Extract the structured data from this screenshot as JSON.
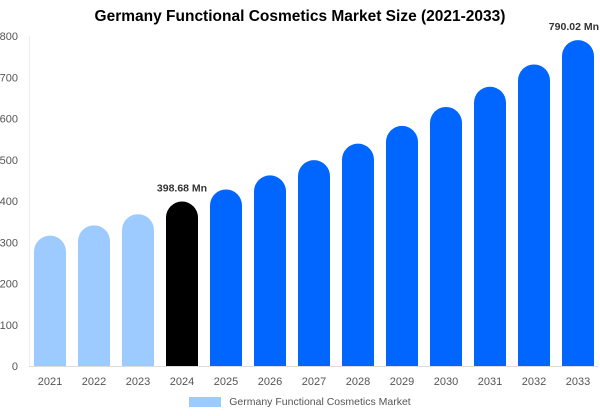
{
  "chart_data": {
    "type": "bar",
    "title": "Germany Functional Cosmetics Market Size (2021-2033)",
    "categories": [
      "2021",
      "2022",
      "2023",
      "2024",
      "2025",
      "2026",
      "2027",
      "2028",
      "2029",
      "2030",
      "2031",
      "2032",
      "2033"
    ],
    "series": [
      {
        "name": "Germany Functional Cosmetics Market",
        "values": [
          316,
          341,
          368,
          398.68,
          428,
          462,
          499,
          539,
          582,
          628,
          677,
          731,
          790.02
        ]
      }
    ],
    "data_labels": [
      {
        "category": "2024",
        "text": "398.68 Mn"
      },
      {
        "category": "2033",
        "text": "790.02 Mn"
      }
    ],
    "yticks": [
      0,
      100,
      200,
      300,
      400,
      500,
      600,
      700,
      800
    ],
    "ylim": [
      0,
      800
    ],
    "grid": false,
    "legend": "bottom",
    "colors": {
      "historical": "#9ECBFF",
      "current": "#000000",
      "forecast": "#0066FF"
    }
  }
}
